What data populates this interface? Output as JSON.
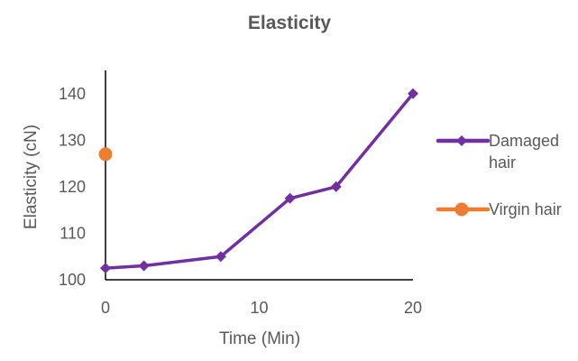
{
  "chart_data": {
    "type": "scatter",
    "title": "Elasticity",
    "xlabel": "Time (Min)",
    "ylabel": "Elasticity (cN)",
    "xlim": [
      0,
      20
    ],
    "ylim": [
      100,
      140
    ],
    "xticks": [
      0,
      10,
      20
    ],
    "yticks": [
      100,
      110,
      120,
      130,
      140
    ],
    "grid": false,
    "legend_position": "right",
    "series": [
      {
        "name": "Damaged hair",
        "legend_lines": [
          "Damaged",
          "hair"
        ],
        "color": "#7030A0",
        "marker": "diamond",
        "line": true,
        "points": [
          {
            "x": 0,
            "y": 102.5
          },
          {
            "x": 2.5,
            "y": 103
          },
          {
            "x": 7.5,
            "y": 105
          },
          {
            "x": 12,
            "y": 117.5
          },
          {
            "x": 15,
            "y": 120
          },
          {
            "x": 20,
            "y": 140
          }
        ]
      },
      {
        "name": "Virgin hair",
        "legend_lines": [
          "Virgin hair"
        ],
        "color": "#ED7D31",
        "marker": "circle",
        "line": false,
        "points": [
          {
            "x": 0,
            "y": 127
          }
        ]
      }
    ]
  }
}
